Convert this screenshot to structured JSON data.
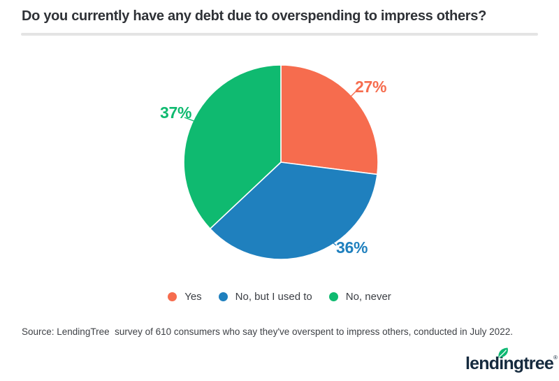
{
  "title": "Do you currently have any debt due to overspending to impress others?",
  "chart_data": {
    "type": "pie",
    "title": "Do you currently have any debt due to overspending to impress others?",
    "start_angle_deg": -90,
    "direction": "clockwise",
    "legend_position": "bottom",
    "slices": [
      {
        "label": "Yes",
        "value": 27,
        "display": "27%",
        "color": "#f66c4e"
      },
      {
        "label": "No, but I used to",
        "value": 36,
        "display": "36%",
        "color": "#1f80be"
      },
      {
        "label": "No, never",
        "value": 37,
        "display": "37%",
        "color": "#0fba70"
      }
    ]
  },
  "source": "Source: LendingTree  survey of 610 consumers who say they've overspent to impress others, conducted in July 2022.",
  "logo": {
    "text": "lendingtree",
    "registered_mark": "®",
    "text_color": "#152a3e",
    "leaf_color": "#0db873"
  }
}
